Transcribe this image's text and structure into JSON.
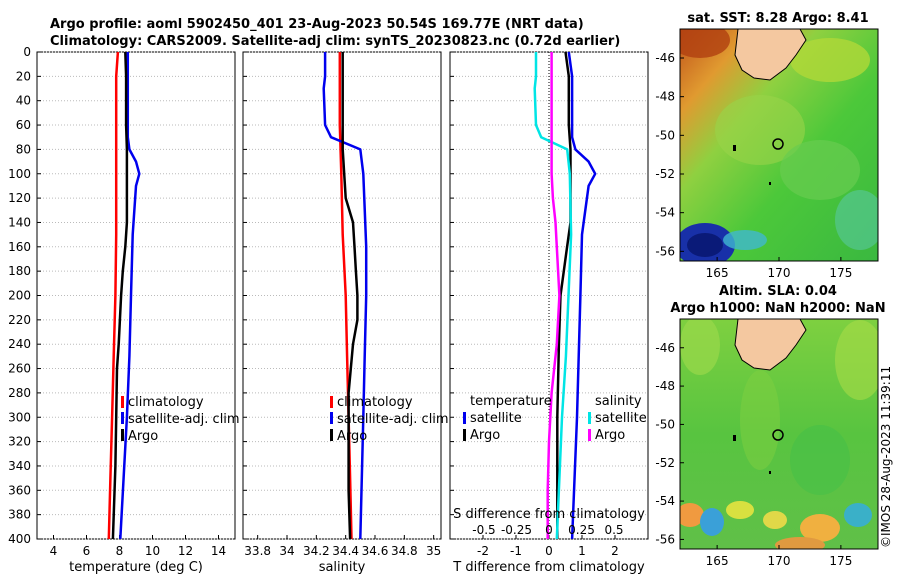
{
  "title_line1": "Argo profile: aoml 5902450_401 23-Aug-2023 50.54S 169.77E (NRT data)",
  "title_line2": "Climatology: CARS2009. Satellite-adj clim: synTS_20230823.nc (0.72d earlier)",
  "credit": "©IMOS 28-Aug-2023 11:39:11",
  "colors": {
    "climatology": "#ff0000",
    "satellite": "#0000ee",
    "argo": "#000000",
    "sat_salinity": "#00e5e5",
    "argo_salinity": "#ff00ff"
  },
  "chart_data": [
    {
      "type": "line",
      "name": "temperature",
      "xlabel": "temperature (deg C)",
      "xlim": [
        3,
        15
      ],
      "xticks": [
        4,
        6,
        8,
        10,
        12,
        14
      ],
      "ylim": [
        0,
        400
      ],
      "yticks": [
        0,
        20,
        40,
        60,
        80,
        100,
        120,
        140,
        160,
        180,
        200,
        220,
        240,
        260,
        280,
        300,
        320,
        340,
        360,
        380,
        400
      ],
      "legend": [
        "climatology",
        "satellite-adj. clim",
        "Argo"
      ],
      "series": [
        {
          "name": "climatology",
          "depth": [
            0,
            20,
            60,
            100,
            150,
            200,
            250,
            300,
            350,
            400
          ],
          "values": [
            7.9,
            7.8,
            7.8,
            7.8,
            7.8,
            7.75,
            7.65,
            7.55,
            7.45,
            7.35
          ]
        },
        {
          "name": "satellite-adj. clim",
          "depth": [
            0,
            20,
            50,
            70,
            80,
            90,
            100,
            110,
            150,
            200,
            250,
            300,
            350,
            400
          ],
          "values": [
            8.5,
            8.5,
            8.5,
            8.5,
            8.6,
            9.0,
            9.2,
            9.0,
            8.8,
            8.7,
            8.6,
            8.45,
            8.25,
            8.05
          ]
        },
        {
          "name": "Argo",
          "depth": [
            0,
            20,
            60,
            80,
            100,
            140,
            160,
            180,
            200,
            240,
            260,
            300,
            340,
            400
          ],
          "values": [
            8.35,
            8.4,
            8.4,
            8.45,
            8.45,
            8.45,
            8.35,
            8.2,
            8.1,
            7.95,
            7.85,
            7.8,
            7.75,
            7.6
          ]
        }
      ]
    },
    {
      "type": "line",
      "name": "salinity",
      "xlabel": "salinity",
      "xlim": [
        33.7,
        35.05
      ],
      "xticks": [
        33.8,
        34.0,
        34.2,
        34.4,
        34.6,
        34.8,
        35.0
      ],
      "xticklabels": [
        "33.8",
        "34",
        "34.2",
        "34.4",
        "34.6",
        "34.8",
        "35"
      ],
      "ylim": [
        0,
        400
      ],
      "legend": [
        "climatology",
        "satellite-adj. clim",
        "Argo"
      ],
      "series": [
        {
          "name": "climatology",
          "depth": [
            0,
            60,
            100,
            150,
            200,
            250,
            300,
            350,
            400
          ],
          "values": [
            34.36,
            34.36,
            34.37,
            34.38,
            34.4,
            34.41,
            34.42,
            34.43,
            34.44
          ]
        },
        {
          "name": "satellite-adj. clim",
          "depth": [
            0,
            20,
            30,
            60,
            70,
            80,
            100,
            160,
            200,
            250,
            300,
            350,
            400
          ],
          "values": [
            34.26,
            34.26,
            34.25,
            34.26,
            34.3,
            34.5,
            34.52,
            34.54,
            34.54,
            34.53,
            34.52,
            34.51,
            34.5
          ]
        },
        {
          "name": "Argo",
          "depth": [
            0,
            40,
            80,
            100,
            120,
            140,
            160,
            180,
            200,
            220,
            240,
            280,
            320,
            360,
            400
          ],
          "values": [
            34.38,
            34.38,
            34.38,
            34.39,
            34.4,
            34.45,
            34.46,
            34.47,
            34.48,
            34.48,
            34.45,
            34.42,
            34.42,
            34.42,
            34.43
          ]
        }
      ]
    },
    {
      "type": "line",
      "name": "difference from climatology",
      "xlabel": "T difference from climatology",
      "xlabel_top": "S difference from climatology",
      "xlim": [
        -3,
        3
      ],
      "xticks": [
        -2,
        -1,
        0,
        1,
        2
      ],
      "xticks_s": [
        -0.5,
        -0.25,
        0,
        0.25,
        0.5
      ],
      "xticklabels_s": [
        "-0.5",
        "-0.25",
        "0",
        "0.25",
        "0.5"
      ],
      "ylim": [
        0,
        400
      ],
      "legend_temperature": {
        "title": "temperature",
        "entries": [
          "satellite",
          "Argo"
        ]
      },
      "legend_salinity": {
        "title": "salinity",
        "entries": [
          "satellite",
          "Argo"
        ]
      },
      "series": [
        {
          "name": "T satellite",
          "depth": [
            0,
            20,
            70,
            80,
            90,
            100,
            110,
            150,
            200,
            250,
            300,
            400
          ],
          "values": [
            0.6,
            0.7,
            0.7,
            0.8,
            1.2,
            1.4,
            1.2,
            1.0,
            0.95,
            0.9,
            0.85,
            0.7
          ]
        },
        {
          "name": "T Argo",
          "depth": [
            0,
            20,
            60,
            80,
            100,
            140,
            160,
            200,
            240,
            300,
            400
          ],
          "values": [
            0.5,
            0.6,
            0.6,
            0.65,
            0.65,
            0.65,
            0.55,
            0.35,
            0.3,
            0.25,
            0.25
          ]
        },
        {
          "name": "S satellite",
          "depth": [
            0,
            20,
            30,
            60,
            70,
            80,
            100,
            150,
            200,
            250,
            300,
            350,
            400
          ],
          "values": [
            -0.1,
            -0.1,
            -0.11,
            -0.1,
            -0.06,
            0.14,
            0.16,
            0.17,
            0.15,
            0.13,
            0.1,
            0.08,
            0.06
          ]
        },
        {
          "name": "S Argo",
          "depth": [
            0,
            40,
            80,
            100,
            120,
            140,
            160,
            180,
            200,
            240,
            280,
            320,
            360,
            400
          ],
          "values": [
            0.02,
            0.02,
            0.02,
            0.02,
            0.03,
            0.05,
            0.06,
            0.07,
            0.08,
            0.06,
            0.02,
            0.0,
            -0.01,
            -0.01
          ]
        }
      ]
    },
    {
      "type": "heatmap",
      "name": "sst map",
      "title": "sat. SST: 8.28 Argo: 8.41",
      "xticks": [
        165,
        170,
        175
      ],
      "yticks": [
        -46,
        -48,
        -50,
        -52,
        -54,
        -56
      ],
      "xlim": [
        162,
        178
      ],
      "ylim": [
        -56.5,
        -44.5
      ],
      "marker": {
        "lon": 169.77,
        "lat": -50.54
      }
    },
    {
      "type": "heatmap",
      "name": "sla map",
      "title_line1": "Altim. SLA: 0.04",
      "title_line2": "Argo h1000: NaN h2000: NaN",
      "xticks": [
        165,
        170,
        175
      ],
      "yticks": [
        -46,
        -48,
        -50,
        -52,
        -54,
        -56
      ],
      "xlim": [
        162,
        178
      ],
      "ylim": [
        -56.5,
        -44.5
      ],
      "marker": {
        "lon": 169.77,
        "lat": -50.54
      }
    }
  ]
}
